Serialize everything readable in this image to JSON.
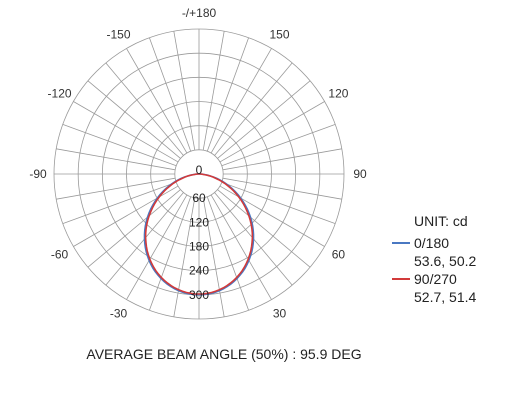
{
  "chart_data": {
    "type": "polar",
    "angle_labels": [
      {
        "angle": 0,
        "text": "-/+180"
      },
      {
        "angle": 30,
        "text": "150"
      },
      {
        "angle": 60,
        "text": "120"
      },
      {
        "angle": 90,
        "text": "90"
      },
      {
        "angle": 120,
        "text": "60"
      },
      {
        "angle": 150,
        "text": "30"
      },
      {
        "angle": -30,
        "text": "-150"
      },
      {
        "angle": -60,
        "text": "-120"
      },
      {
        "angle": -90,
        "text": "-90"
      },
      {
        "angle": -120,
        "text": "-60"
      },
      {
        "angle": -150,
        "text": "-30"
      }
    ],
    "radial_ticks": [
      0,
      60,
      120,
      180,
      240,
      300
    ],
    "r_max": 360,
    "series": [
      {
        "name": "0/180",
        "color": "#4a78c2",
        "params": "53.6, 50.2",
        "peak": 300,
        "half_angle": 53.6
      },
      {
        "name": "90/270",
        "color": "#d23a3a",
        "params": "52.7, 51.4",
        "peak": 298,
        "half_angle": 52.7
      }
    ]
  },
  "legend": {
    "unit": "UNIT: cd",
    "items": [
      {
        "label": "0/180",
        "values": "53.6, 50.2",
        "color": "#4a78c2"
      },
      {
        "label": "90/270",
        "values": "52.7, 51.4",
        "color": "#d23a3a"
      }
    ]
  },
  "footer": "AVERAGE BEAM ANGLE (50%) : 95.9 DEG"
}
